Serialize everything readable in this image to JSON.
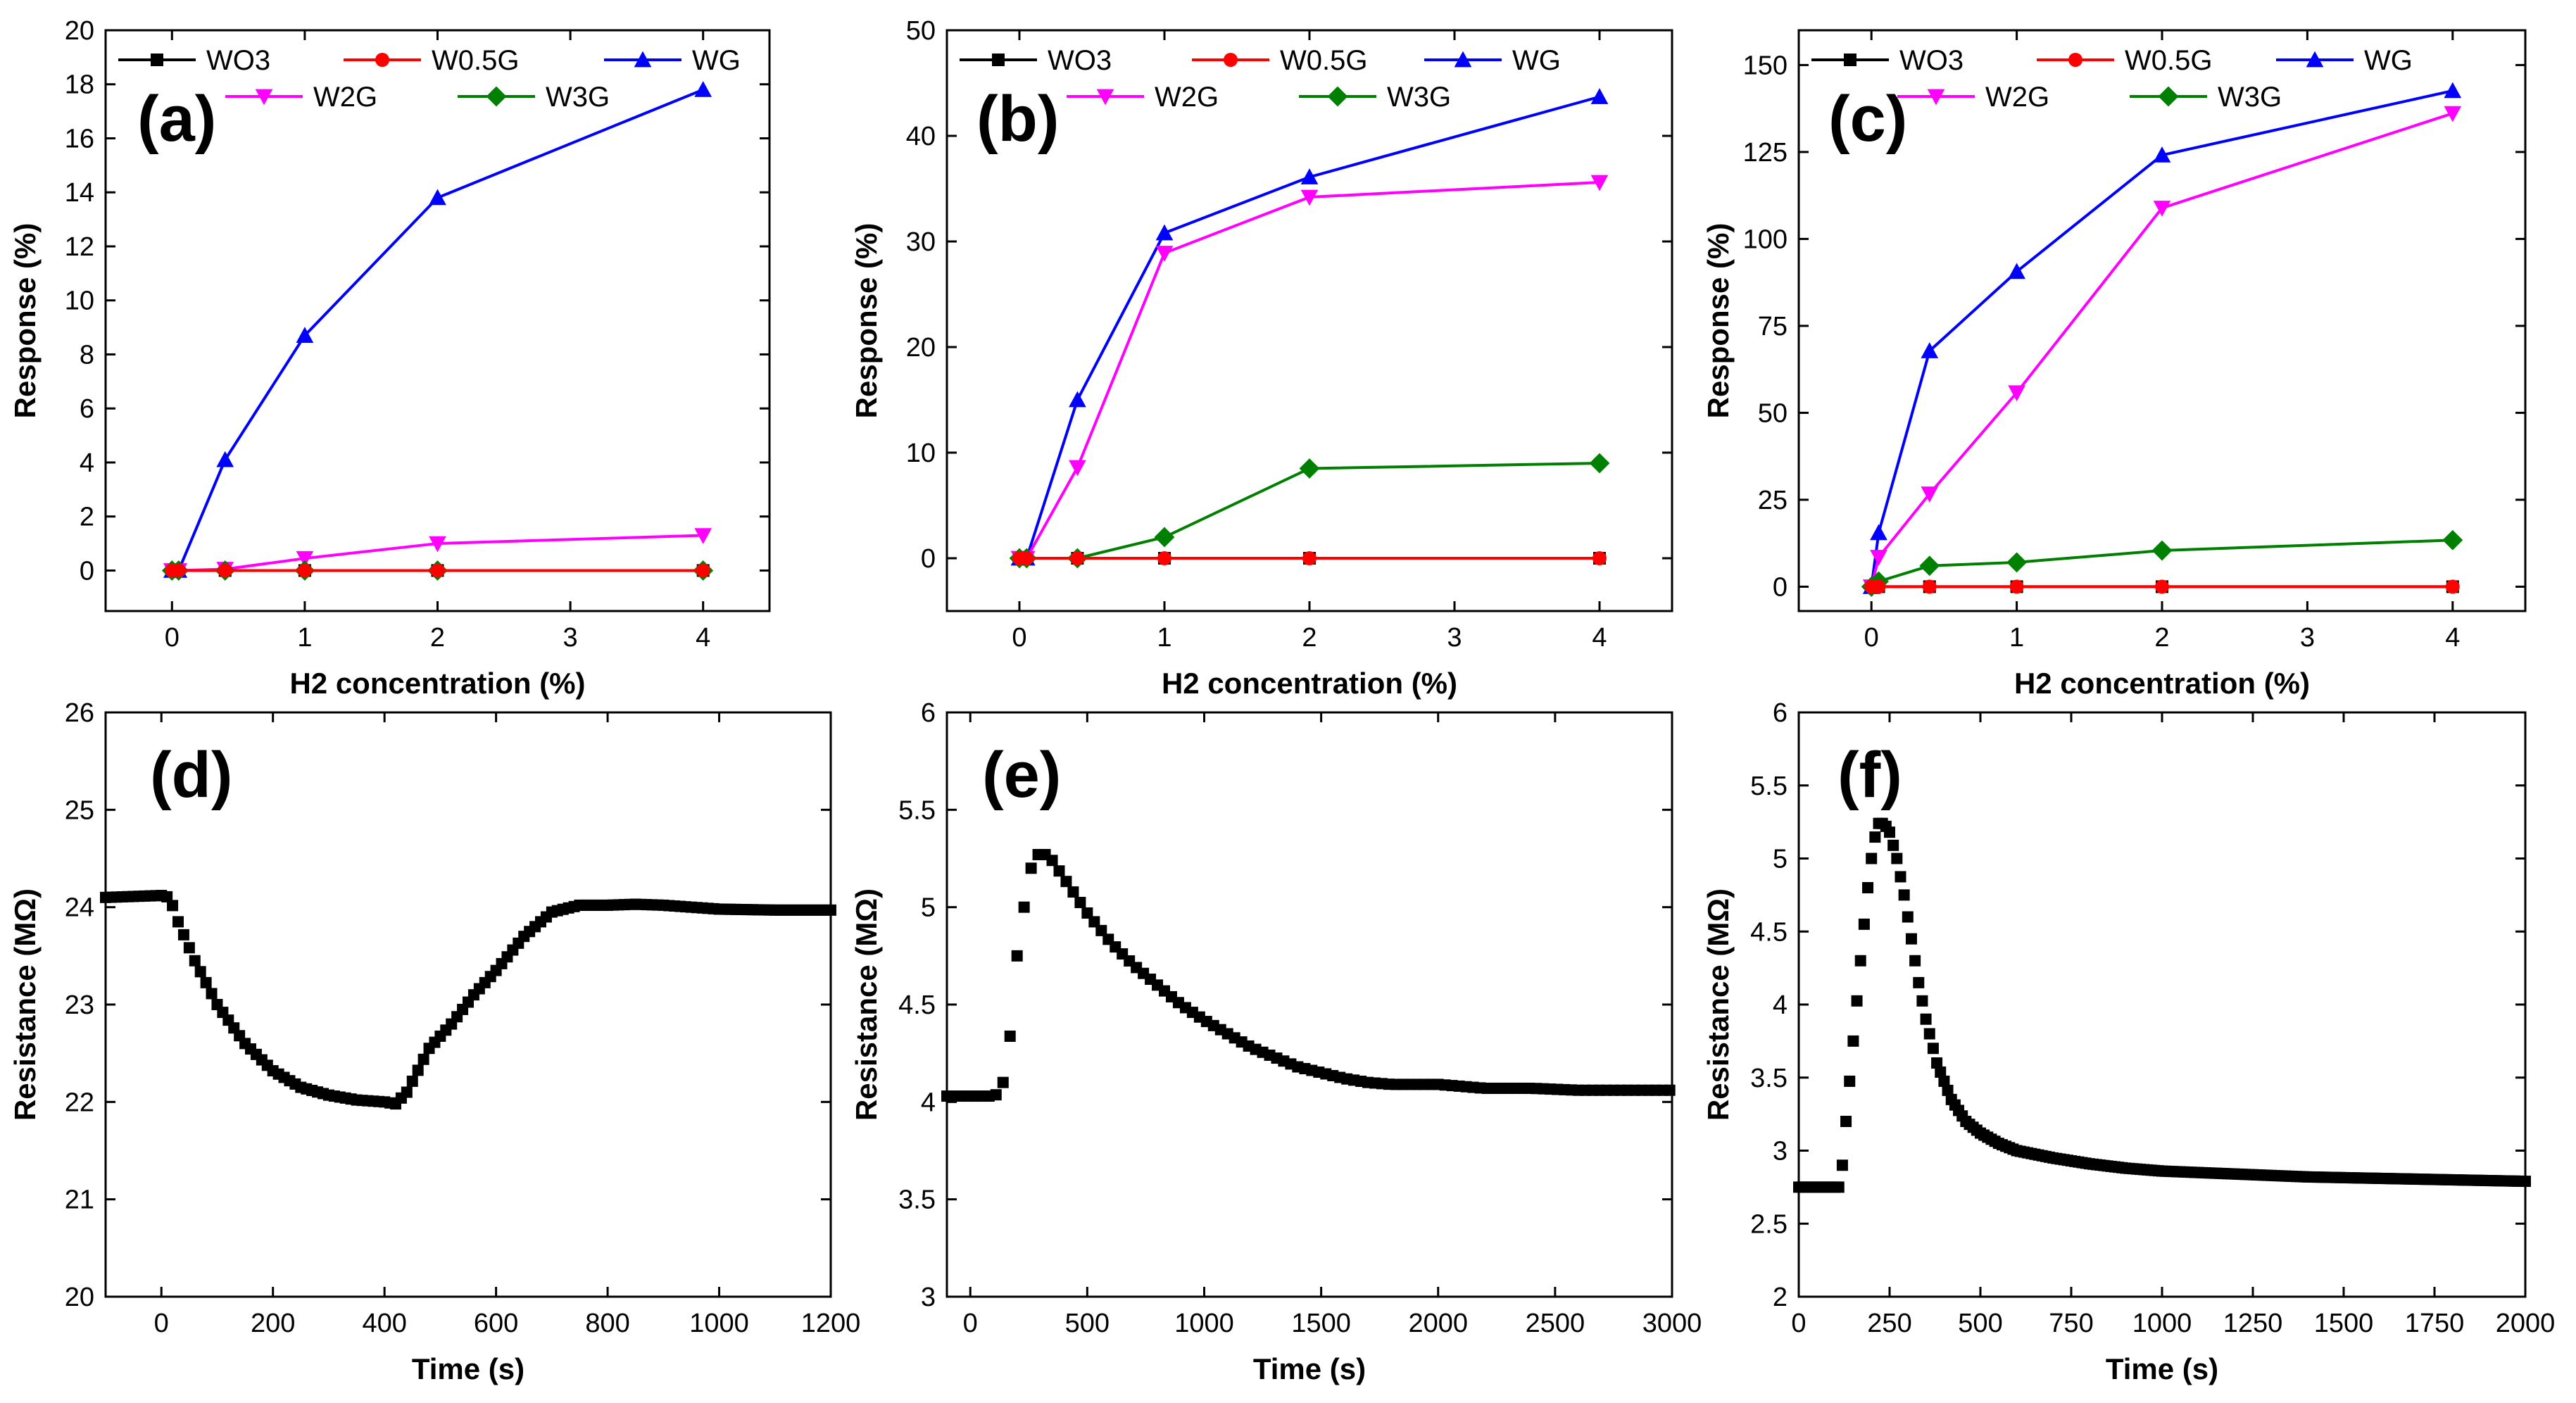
{
  "chart_data": [
    {
      "id": "a",
      "type": "line",
      "panel_label": "(a)",
      "xlabel": "H2 concentration (%)",
      "ylabel": "Response (%)",
      "xlim": [
        -0.5,
        4.5
      ],
      "ylim": [
        -1.5,
        20
      ],
      "xticks": [
        0,
        1,
        2,
        3,
        4
      ],
      "yticks": [
        0,
        2,
        4,
        6,
        8,
        10,
        12,
        14,
        16,
        18,
        20
      ],
      "x": [
        0,
        0.05,
        0.4,
        1,
        2,
        4
      ],
      "series": [
        {
          "name": "WO3",
          "color": "#000000",
          "marker": "square",
          "values": [
            0,
            0,
            0,
            0,
            0,
            0
          ]
        },
        {
          "name": "W0.5G",
          "color": "#ff0000",
          "marker": "circle",
          "values": [
            0,
            0,
            0,
            0,
            0,
            0
          ]
        },
        {
          "name": "WG",
          "color": "#0000ff",
          "marker": "triangle-up",
          "values": [
            0,
            0,
            4.1,
            8.7,
            13.8,
            17.8
          ]
        },
        {
          "name": "W2G",
          "color": "#ff00ff",
          "marker": "triangle-down",
          "values": [
            0,
            0,
            0.05,
            0.45,
            1.0,
            1.3
          ]
        },
        {
          "name": "W3G",
          "color": "#008000",
          "marker": "diamond",
          "values": [
            0,
            0,
            0,
            0,
            0,
            0
          ]
        }
      ]
    },
    {
      "id": "b",
      "type": "line",
      "panel_label": "(b)",
      "xlabel": "H2 concentration (%)",
      "ylabel": "Response (%)",
      "xlim": [
        -0.5,
        4.5
      ],
      "ylim": [
        -5,
        50
      ],
      "xticks": [
        0,
        1,
        2,
        3,
        4
      ],
      "yticks": [
        0,
        10,
        20,
        30,
        40,
        50
      ],
      "ytick_labels": [
        "0",
        "10",
        "20",
        "30",
        "40",
        "50"
      ],
      "x": [
        0,
        0.05,
        0.4,
        1,
        2,
        4
      ],
      "series": [
        {
          "name": "WO3",
          "color": "#000000",
          "marker": "square",
          "values": [
            0,
            0,
            0,
            0,
            0,
            0
          ]
        },
        {
          "name": "W0.5G",
          "color": "#ff0000",
          "marker": "circle",
          "values": [
            0,
            0,
            0,
            0,
            0,
            0
          ]
        },
        {
          "name": "WG",
          "color": "#0000ff",
          "marker": "triangle-up",
          "values": [
            0,
            0,
            15,
            30.8,
            36.1,
            43.7
          ]
        },
        {
          "name": "W2G",
          "color": "#ff00ff",
          "marker": "triangle-down",
          "values": [
            0,
            0,
            8.6,
            28.9,
            34.2,
            35.6
          ]
        },
        {
          "name": "W3G",
          "color": "#008000",
          "marker": "diamond",
          "values": [
            0,
            0,
            0,
            2,
            8.5,
            9
          ]
        }
      ]
    },
    {
      "id": "c",
      "type": "line",
      "panel_label": "(c)",
      "xlabel": "H2 concentration (%)",
      "ylabel": "Response (%)",
      "xlim": [
        -0.5,
        4.5
      ],
      "ylim": [
        -7,
        160
      ],
      "xticks": [
        0,
        1,
        2,
        3,
        4
      ],
      "yticks": [
        0,
        25,
        50,
        75,
        100,
        125,
        150
      ],
      "x": [
        0,
        0.05,
        0.4,
        1,
        2,
        4
      ],
      "series": [
        {
          "name": "WO3",
          "color": "#000000",
          "marker": "square",
          "values": [
            0,
            0,
            0,
            0,
            0,
            0
          ]
        },
        {
          "name": "W0.5G",
          "color": "#ff0000",
          "marker": "circle",
          "values": [
            0,
            0,
            0,
            0,
            0,
            0
          ]
        },
        {
          "name": "WG",
          "color": "#0000ff",
          "marker": "triangle-up",
          "values": [
            0,
            15.5,
            67.8,
            90.6,
            124.1,
            142.6
          ]
        },
        {
          "name": "W2G",
          "color": "#ff00ff",
          "marker": "triangle-down",
          "values": [
            0,
            8.5,
            26.7,
            55.8,
            108.9,
            136.1
          ]
        },
        {
          "name": "W3G",
          "color": "#008000",
          "marker": "diamond",
          "values": [
            0,
            1.5,
            6,
            7,
            10.4,
            13.4
          ]
        }
      ]
    },
    {
      "id": "d",
      "type": "scatter",
      "panel_label": "(d)",
      "xlabel": "Time (s)",
      "ylabel": "Resistance (MΩ)",
      "xlim": [
        -100,
        1200
      ],
      "ylim": [
        20,
        26
      ],
      "xticks": [
        0,
        200,
        400,
        600,
        800,
        1000,
        1200
      ],
      "yticks": [
        20,
        21,
        22,
        23,
        24,
        25,
        26
      ],
      "color": "#000000",
      "marker": "square",
      "curve": [
        [
          -100,
          24.1
        ],
        [
          0,
          24.12
        ],
        [
          15,
          24.1
        ],
        [
          30,
          23.85
        ],
        [
          60,
          23.45
        ],
        [
          100,
          23.0
        ],
        [
          150,
          22.6
        ],
        [
          200,
          22.32
        ],
        [
          250,
          22.15
        ],
        [
          300,
          22.07
        ],
        [
          350,
          22.02
        ],
        [
          400,
          22.0
        ],
        [
          420,
          21.98
        ],
        [
          440,
          22.1
        ],
        [
          480,
          22.55
        ],
        [
          520,
          22.8
        ],
        [
          560,
          23.1
        ],
        [
          600,
          23.35
        ],
        [
          650,
          23.7
        ],
        [
          700,
          23.95
        ],
        [
          750,
          24.02
        ],
        [
          800,
          24.02
        ],
        [
          850,
          24.03
        ],
        [
          900,
          24.02
        ],
        [
          950,
          24.0
        ],
        [
          1000,
          23.98
        ],
        [
          1100,
          23.97
        ],
        [
          1200,
          23.97
        ]
      ],
      "step": 10
    },
    {
      "id": "e",
      "type": "scatter",
      "panel_label": "(e)",
      "xlabel": "Time (s)",
      "ylabel": "Resistance (MΩ)",
      "xlim": [
        -100,
        3000
      ],
      "ylim": [
        3.0,
        6.0
      ],
      "xticks": [
        0,
        500,
        1000,
        1500,
        2000,
        2500,
        3000
      ],
      "yticks": [
        3.0,
        3.5,
        4.0,
        4.5,
        5.0,
        5.5,
        6.0
      ],
      "color": "#000000",
      "marker": "square",
      "curve": [
        [
          -100,
          4.03
        ],
        [
          100,
          4.03
        ],
        [
          130,
          4.05
        ],
        [
          160,
          4.2
        ],
        [
          200,
          4.75
        ],
        [
          230,
          5.0
        ],
        [
          260,
          5.2
        ],
        [
          290,
          5.27
        ],
        [
          320,
          5.27
        ],
        [
          350,
          5.24
        ],
        [
          400,
          5.15
        ],
        [
          500,
          4.97
        ],
        [
          600,
          4.82
        ],
        [
          700,
          4.7
        ],
        [
          800,
          4.6
        ],
        [
          900,
          4.5
        ],
        [
          1000,
          4.42
        ],
        [
          1100,
          4.35
        ],
        [
          1200,
          4.28
        ],
        [
          1300,
          4.23
        ],
        [
          1400,
          4.18
        ],
        [
          1500,
          4.15
        ],
        [
          1600,
          4.12
        ],
        [
          1700,
          4.1
        ],
        [
          1800,
          4.09
        ],
        [
          1900,
          4.09
        ],
        [
          2000,
          4.09
        ],
        [
          2100,
          4.08
        ],
        [
          2200,
          4.07
        ],
        [
          2400,
          4.07
        ],
        [
          2600,
          4.06
        ],
        [
          2800,
          4.06
        ],
        [
          3000,
          4.06
        ]
      ],
      "step": 30
    },
    {
      "id": "f",
      "type": "scatter",
      "panel_label": "(f)",
      "xlabel": "Time (s)",
      "ylabel": "Resistance (MΩ)",
      "xlim": [
        0,
        2000
      ],
      "ylim": [
        2.0,
        6.0
      ],
      "xticks": [
        0,
        250,
        500,
        750,
        1000,
        1250,
        1500,
        1750,
        2000
      ],
      "yticks": [
        2.0,
        2.5,
        3.0,
        3.5,
        4.0,
        4.5,
        5.0,
        5.5,
        6.0
      ],
      "color": "#000000",
      "marker": "square",
      "curve": [
        [
          0,
          2.75
        ],
        [
          110,
          2.75
        ],
        [
          120,
          2.9
        ],
        [
          130,
          3.2
        ],
        [
          150,
          3.75
        ],
        [
          170,
          4.3
        ],
        [
          190,
          4.8
        ],
        [
          205,
          5.1
        ],
        [
          220,
          5.24
        ],
        [
          235,
          5.24
        ],
        [
          250,
          5.18
        ],
        [
          270,
          5.0
        ],
        [
          290,
          4.75
        ],
        [
          310,
          4.45
        ],
        [
          330,
          4.15
        ],
        [
          350,
          3.9
        ],
        [
          380,
          3.6
        ],
        [
          420,
          3.35
        ],
        [
          460,
          3.2
        ],
        [
          500,
          3.12
        ],
        [
          550,
          3.05
        ],
        [
          600,
          3.0
        ],
        [
          700,
          2.95
        ],
        [
          800,
          2.91
        ],
        [
          900,
          2.88
        ],
        [
          1000,
          2.86
        ],
        [
          1200,
          2.84
        ],
        [
          1400,
          2.82
        ],
        [
          1600,
          2.81
        ],
        [
          1800,
          2.8
        ],
        [
          2000,
          2.79
        ]
      ],
      "step": 10
    }
  ]
}
